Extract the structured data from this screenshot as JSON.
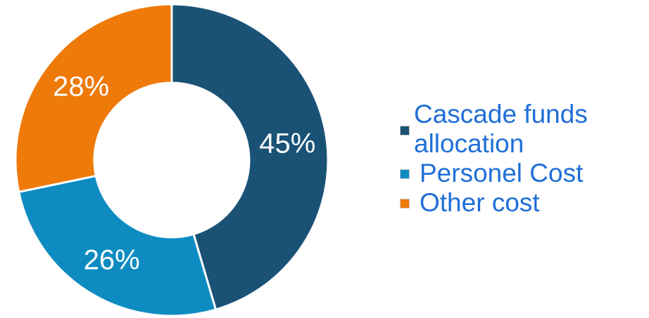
{
  "chart_data": {
    "type": "pie",
    "donut": true,
    "title": "",
    "slices": [
      {
        "label": "Cascade funds allocation",
        "value": 45,
        "display": "45%",
        "color": "#1A5276"
      },
      {
        "label": "Personel Cost",
        "value": 26,
        "display": "26%",
        "color": "#0E8CC2"
      },
      {
        "label": "Other cost",
        "value": 28,
        "display": "28%",
        "color": "#EE7A0A"
      }
    ],
    "legend_position": "right"
  }
}
